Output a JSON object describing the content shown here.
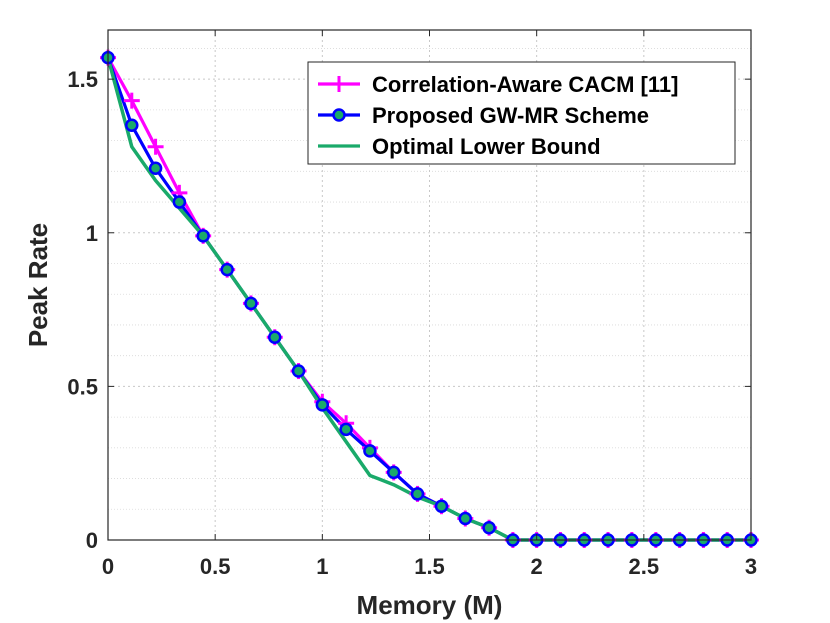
{
  "chart_data": {
    "type": "line",
    "title": "",
    "xlabel": "Memory (M)",
    "ylabel": "Peak Rate",
    "xlim": [
      0,
      3
    ],
    "ylim": [
      0,
      1.6
    ],
    "xticks": [
      0,
      0.5,
      1,
      1.5,
      2,
      2.5,
      3
    ],
    "xtick_labels": [
      "0",
      "0.5",
      "1",
      "1.5",
      "2",
      "2.5",
      "3"
    ],
    "yticks": [
      0,
      0.5,
      1,
      1.5
    ],
    "ytick_labels": [
      "0",
      "0.5",
      "1",
      "1.5"
    ],
    "grid": true,
    "legend_position": "top-right",
    "series": [
      {
        "name": "Correlation-Aware CACM [11]",
        "color": "#ff00ff",
        "marker": "plus",
        "x": [
          0,
          0.111,
          0.222,
          0.333,
          0.444,
          0.556,
          0.667,
          0.778,
          0.889,
          1.0,
          1.111,
          1.222,
          1.333,
          1.444,
          1.556,
          1.667,
          1.778,
          1.889,
          2.0,
          2.111,
          2.222,
          2.333,
          2.444,
          2.556,
          2.667,
          2.778,
          2.889,
          3.0
        ],
        "y": [
          1.57,
          1.43,
          1.28,
          1.13,
          0.99,
          0.88,
          0.77,
          0.66,
          0.55,
          0.45,
          0.38,
          0.3,
          0.22,
          0.15,
          0.11,
          0.07,
          0.04,
          0.0,
          0.0,
          0.0,
          0.0,
          0.0,
          0.0,
          0.0,
          0.0,
          0.0,
          0.0,
          0.0
        ]
      },
      {
        "name": "Proposed GW-MR Scheme",
        "color": "#0000ff",
        "marker": "circle",
        "x": [
          0,
          0.111,
          0.222,
          0.333,
          0.444,
          0.556,
          0.667,
          0.778,
          0.889,
          1.0,
          1.111,
          1.222,
          1.333,
          1.444,
          1.556,
          1.667,
          1.778,
          1.889,
          2.0,
          2.111,
          2.222,
          2.333,
          2.444,
          2.556,
          2.667,
          2.778,
          2.889,
          3.0
        ],
        "y": [
          1.57,
          1.35,
          1.21,
          1.1,
          0.99,
          0.88,
          0.77,
          0.66,
          0.55,
          0.44,
          0.36,
          0.29,
          0.22,
          0.15,
          0.11,
          0.07,
          0.04,
          0.0,
          0.0,
          0.0,
          0.0,
          0.0,
          0.0,
          0.0,
          0.0,
          0.0,
          0.0,
          0.0
        ]
      },
      {
        "name": "Optimal Lower Bound",
        "color": "#1aaa6a",
        "marker": "none",
        "x": [
          0,
          0.111,
          0.222,
          0.333,
          0.444,
          0.556,
          0.667,
          0.778,
          0.889,
          1.0,
          1.111,
          1.222,
          1.333,
          1.444,
          1.556,
          1.667,
          1.778,
          1.889,
          2.0,
          2.111,
          2.222,
          2.333,
          2.444,
          2.556,
          2.667,
          2.778,
          2.889,
          3.0
        ],
        "y": [
          1.57,
          1.28,
          1.17,
          1.08,
          0.99,
          0.88,
          0.77,
          0.66,
          0.55,
          0.43,
          0.32,
          0.21,
          0.18,
          0.14,
          0.11,
          0.07,
          0.04,
          0.0,
          0.0,
          0.0,
          0.0,
          0.0,
          0.0,
          0.0,
          0.0,
          0.0,
          0.0,
          0.0
        ]
      }
    ]
  }
}
